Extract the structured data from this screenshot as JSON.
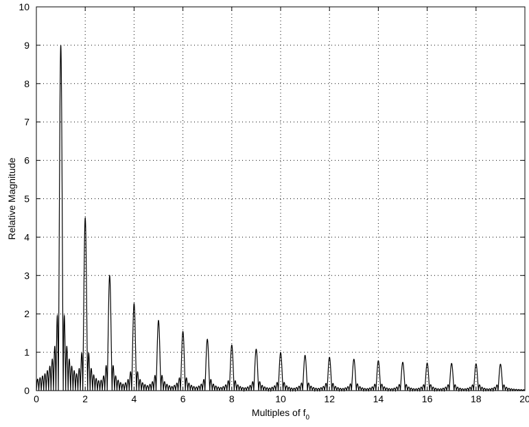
{
  "chart_data": {
    "type": "line",
    "xlabel": "Multiples of f",
    "xlabel_subscript": "0",
    "ylabel": "Relative Magnitude",
    "xlim": [
      0,
      20
    ],
    "ylim": [
      0,
      10
    ],
    "x_ticks": [
      "0",
      "2",
      "4",
      "6",
      "8",
      "10",
      "12",
      "14",
      "16",
      "18",
      "20"
    ],
    "y_ticks": [
      "0",
      "1",
      "2",
      "3",
      "4",
      "5",
      "6",
      "7",
      "8",
      "9",
      "10"
    ],
    "grid": true,
    "series": [
      {
        "x": [
          1,
          2,
          3,
          4,
          5,
          6,
          7,
          8,
          9,
          10,
          11,
          12,
          13,
          14,
          15,
          16,
          17,
          18,
          19
        ],
        "values": [
          9.0,
          4.5,
          3.0,
          2.27,
          1.83,
          1.54,
          1.34,
          1.19,
          1.08,
          0.99,
          0.92,
          0.87,
          0.82,
          0.78,
          0.74,
          0.72,
          0.71,
          0.7,
          0.69
        ]
      }
    ],
    "peak_width": 0.1
  }
}
